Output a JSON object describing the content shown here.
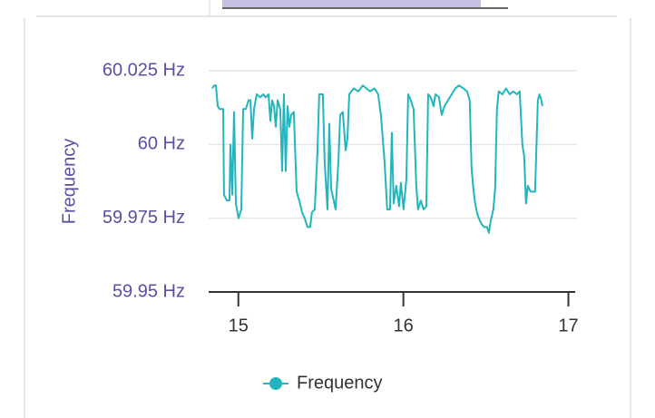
{
  "chart_data": {
    "type": "line",
    "y_label": "Frequency",
    "xlim": [
      14.82,
      17.03
    ],
    "xticks": [
      15,
      16,
      17
    ],
    "ylim": [
      59.95,
      60.025
    ],
    "yticks": [
      {
        "value": 59.95,
        "label": "59.95 Hz"
      },
      {
        "value": 59.975,
        "label": "59.975 Hz"
      },
      {
        "value": 60,
        "label": "60 Hz"
      },
      {
        "value": 60.025,
        "label": "60.025 Hz"
      }
    ],
    "grid": true,
    "legend": "bottom",
    "series": [
      {
        "name": "Frequency",
        "color": "#22b5bd",
        "x": [
          14.842,
          14.853,
          14.864,
          14.875,
          14.886,
          14.908,
          14.913,
          14.93,
          14.946,
          14.952,
          14.963,
          14.974,
          14.985,
          15.001,
          15.018,
          15.029,
          15.045,
          15.062,
          15.073,
          15.084,
          15.095,
          15.111,
          15.133,
          15.15,
          15.166,
          15.183,
          15.194,
          15.205,
          15.216,
          15.227,
          15.238,
          15.254,
          15.265,
          15.276,
          15.287,
          15.298,
          15.309,
          15.32,
          15.336,
          15.353,
          15.369,
          15.386,
          15.402,
          15.419,
          15.435,
          15.446,
          15.463,
          15.479,
          15.49,
          15.512,
          15.523,
          15.54,
          15.551,
          15.562,
          15.578,
          15.589,
          15.606,
          15.617,
          15.633,
          15.65,
          15.661,
          15.672,
          15.699,
          15.727,
          15.754,
          15.776,
          15.798,
          15.825,
          15.847,
          15.864,
          15.886,
          15.902,
          15.919,
          15.93,
          15.941,
          15.957,
          15.974,
          15.985,
          16.001,
          16.018,
          16.029,
          16.045,
          16.062,
          16.078,
          16.089,
          16.106,
          16.122,
          16.139,
          16.15,
          16.166,
          16.183,
          16.194,
          16.216,
          16.232,
          16.249,
          16.271,
          16.293,
          16.315,
          16.336,
          16.364,
          16.386,
          16.402,
          16.413,
          16.424,
          16.435,
          16.446,
          16.457,
          16.474,
          16.49,
          16.507,
          16.518,
          16.529,
          16.545,
          16.556,
          16.567,
          16.578,
          16.6,
          16.622,
          16.644,
          16.666,
          16.688,
          16.705,
          16.721,
          16.732,
          16.743,
          16.754,
          16.771,
          16.787,
          16.798,
          16.815,
          16.825,
          16.836,
          16.842
        ],
        "values": [
          60.019,
          60.02,
          60.02,
          60.013,
          60.012,
          60.012,
          59.983,
          59.981,
          59.981,
          60.0,
          59.983,
          60.011,
          59.98,
          59.975,
          59.978,
          60.012,
          60.012,
          60.015,
          60.015,
          60.002,
          60.012,
          60.017,
          60.016,
          60.017,
          60.016,
          60.017,
          60.008,
          60.015,
          60.013,
          60.006,
          60.015,
          60.012,
          59.991,
          60.017,
          59.991,
          60.013,
          60.006,
          60.01,
          60.011,
          59.984,
          59.981,
          59.977,
          59.975,
          59.972,
          59.972,
          59.977,
          59.978,
          59.997,
          60.017,
          60.017,
          59.994,
          59.978,
          60.007,
          59.985,
          59.981,
          59.978,
          59.994,
          60.01,
          60.011,
          59.998,
          60.002,
          60.017,
          60.019,
          60.018,
          60.02,
          60.019,
          60.018,
          60.019,
          60.017,
          60.01,
          59.994,
          59.978,
          59.978,
          60.004,
          59.98,
          59.986,
          59.979,
          59.987,
          59.978,
          59.988,
          60.017,
          60.015,
          60.012,
          59.986,
          59.978,
          59.981,
          59.978,
          59.979,
          60.017,
          60.016,
          60.013,
          60.017,
          60.016,
          60.01,
          60.013,
          60.015,
          60.017,
          60.019,
          60.02,
          60.019,
          60.018,
          60.015,
          59.992,
          59.985,
          59.98,
          59.977,
          59.975,
          59.973,
          59.972,
          59.972,
          59.97,
          59.974,
          59.978,
          59.985,
          60.012,
          60.018,
          60.017,
          60.019,
          60.017,
          60.018,
          60.017,
          60.018,
          60.0,
          59.996,
          59.98,
          59.986,
          59.984,
          59.984,
          59.984,
          60.015,
          60.017,
          60.015,
          60.013
        ]
      }
    ]
  }
}
